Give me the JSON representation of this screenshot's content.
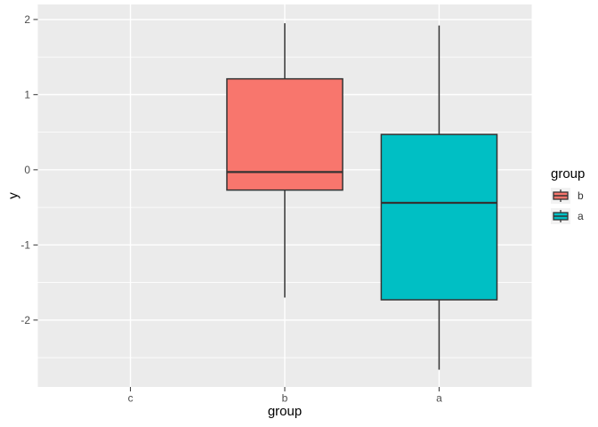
{
  "chart_data": {
    "type": "boxplot",
    "xlabel": "group",
    "ylabel": "y",
    "categories": [
      "c",
      "b",
      "a"
    ],
    "empty_categories": [
      "c"
    ],
    "y_ticks": [
      2,
      1,
      0,
      -1,
      -2
    ],
    "y_minor_ticks": [
      1.5,
      0.5,
      -0.5,
      -1.5,
      -2.5
    ],
    "ylim": [
      -2.89,
      2.2
    ],
    "grid": true,
    "legend": {
      "title": "group",
      "position": "right",
      "entries": [
        {
          "label": "b",
          "color": "#F8766D"
        },
        {
          "label": "a",
          "color": "#00BFC4"
        }
      ]
    },
    "series": [
      {
        "group": "b",
        "color": "#F8766D",
        "min": -1.7,
        "q1": -0.27,
        "median": -0.03,
        "q3": 1.21,
        "max": 1.95
      },
      {
        "group": "a",
        "color": "#00BFC4",
        "min": -2.66,
        "q1": -1.73,
        "median": -0.44,
        "q3": 0.47,
        "max": 1.92
      }
    ]
  },
  "style": {
    "figure_background": "#FFFFFF",
    "panel_background": "#EBEBEB",
    "gridline_color": "#FFFFFF",
    "tick_color": "#333333",
    "tick_label_color": "#4D4D4D",
    "axis_title_color": "#000000",
    "box_outline_color": "#333333",
    "legend_key_background": "#F2F2F2"
  }
}
